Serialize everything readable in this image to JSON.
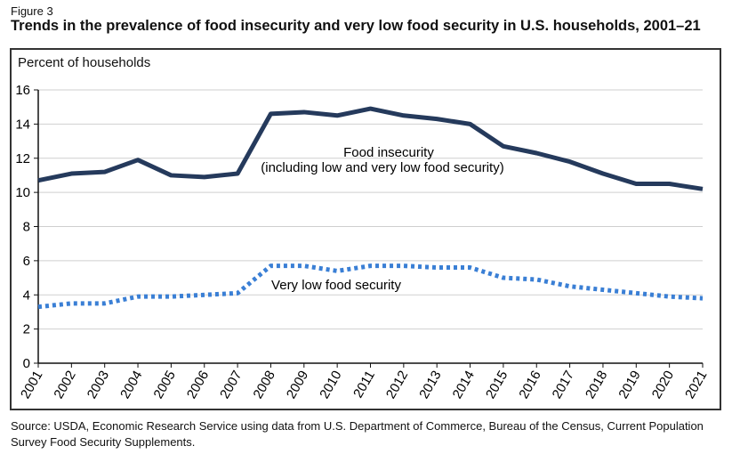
{
  "figure_label": "Figure 3",
  "title": "Trends in the prevalence of food insecurity and very low food security in U.S. households, 2001–21",
  "source": "Source: USDA, Economic Research Service using data from U.S. Department of Commerce, Bureau of the Census, Current Population Survey Food Security Supplements.",
  "chart_data": {
    "type": "line",
    "ylabel": "Percent of households",
    "ylim": [
      0,
      16
    ],
    "yticks": [
      0,
      2,
      4,
      6,
      8,
      10,
      12,
      14,
      16
    ],
    "grid": true,
    "x": [
      "2001",
      "2002",
      "2003",
      "2004",
      "2005",
      "2006",
      "2007",
      "2008",
      "2009",
      "2010",
      "2011",
      "2012",
      "2013",
      "2014",
      "2015",
      "2016",
      "2017",
      "2018",
      "2019",
      "2020",
      "2021"
    ],
    "series": [
      {
        "name": "Food insecurity",
        "label_line2": "(including low and very low food security)",
        "color": "#253a5c",
        "style": "solid",
        "values": [
          10.7,
          11.1,
          11.2,
          11.9,
          11.0,
          10.9,
          11.1,
          14.6,
          14.7,
          14.5,
          14.9,
          14.5,
          14.3,
          14.0,
          12.7,
          12.3,
          11.8,
          11.1,
          10.5,
          10.5,
          10.2
        ]
      },
      {
        "name": "Very low food security",
        "color": "#3a7fd5",
        "style": "dotted",
        "values": [
          3.3,
          3.5,
          3.5,
          3.9,
          3.9,
          4.0,
          4.1,
          5.7,
          5.7,
          5.4,
          5.7,
          5.7,
          5.6,
          5.6,
          5.0,
          4.9,
          4.5,
          4.3,
          4.1,
          3.9,
          3.8
        ]
      }
    ]
  }
}
